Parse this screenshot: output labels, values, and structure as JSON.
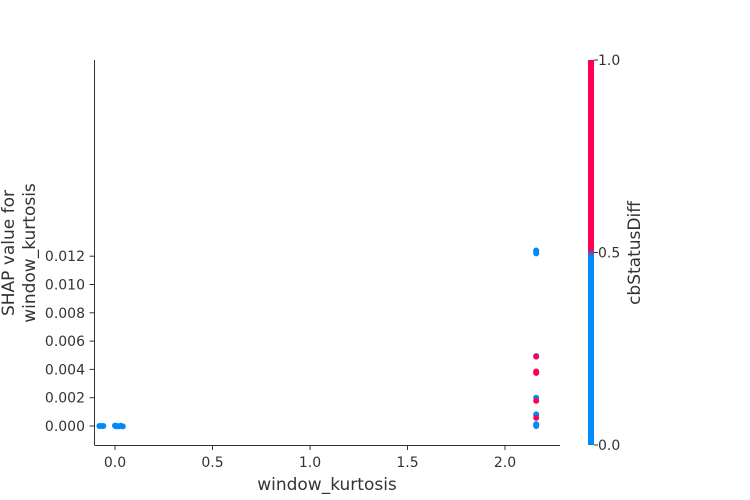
{
  "chart_data": {
    "type": "scatter",
    "title": "",
    "xlabel": "window_kurtosis",
    "ylabel": "SHAP value for\nwindow_kurtosis",
    "xlim": [
      -0.1,
      2.28
    ],
    "ylim": [
      -0.0007,
      0.013
    ],
    "x_ticks": [
      0.0,
      0.5,
      1.0,
      1.5,
      2.0
    ],
    "x_tick_labels": [
      "0.0",
      "0.5",
      "1.0",
      "1.5",
      "2.0"
    ],
    "y_ticks": [
      0.0,
      0.002,
      0.004,
      0.006,
      0.008,
      0.01,
      0.012
    ],
    "y_tick_labels": [
      "0.000",
      "0.002",
      "0.004",
      "0.006",
      "0.008",
      "0.010",
      "0.012"
    ],
    "grid": false,
    "colors": {
      "low": "#008bfb",
      "high": "#ff0052"
    },
    "colorbar": {
      "label": "cbStatusDiff",
      "ticks": [
        0.0,
        0.5,
        1.0
      ],
      "tick_labels": [
        "0.0",
        "0.5",
        "1.0"
      ]
    },
    "points": [
      {
        "x": -0.08,
        "y": 0.0,
        "c": 0
      },
      {
        "x": -0.07,
        "y": 0.0,
        "c": 0
      },
      {
        "x": -0.06,
        "y": 0.0,
        "c": 0
      },
      {
        "x": 0.0,
        "y": 3e-05,
        "c": 0
      },
      {
        "x": 0.005,
        "y": -3e-05,
        "c": 0
      },
      {
        "x": 0.01,
        "y": 0.0,
        "c": 0
      },
      {
        "x": 0.02,
        "y": -2e-05,
        "c": 0
      },
      {
        "x": 0.03,
        "y": 2e-05,
        "c": 0
      },
      {
        "x": 0.04,
        "y": -3e-05,
        "c": 0
      },
      {
        "x": 2.16,
        "y": 0.0124,
        "c": 0
      },
      {
        "x": 2.16,
        "y": 0.01235,
        "c": 0
      },
      {
        "x": 2.16,
        "y": 0.0122,
        "c": 0
      },
      {
        "x": 2.16,
        "y": 0.00495,
        "c": 0
      },
      {
        "x": 2.16,
        "y": 0.0049,
        "c": 1
      },
      {
        "x": 2.16,
        "y": 0.00385,
        "c": 1
      },
      {
        "x": 2.16,
        "y": 0.0038,
        "c": 1
      },
      {
        "x": 2.16,
        "y": 0.00375,
        "c": 1
      },
      {
        "x": 2.16,
        "y": 0.002,
        "c": 0
      },
      {
        "x": 2.16,
        "y": 0.00178,
        "c": 1
      },
      {
        "x": 2.16,
        "y": 0.00082,
        "c": 0
      },
      {
        "x": 2.16,
        "y": 0.00078,
        "c": 0
      },
      {
        "x": 2.16,
        "y": 0.00057,
        "c": 1
      },
      {
        "x": 2.16,
        "y": 0.00012,
        "c": 0
      },
      {
        "x": 2.16,
        "y": 6e-05,
        "c": 0
      },
      {
        "x": 2.16,
        "y": 0.0,
        "c": 0
      }
    ]
  }
}
